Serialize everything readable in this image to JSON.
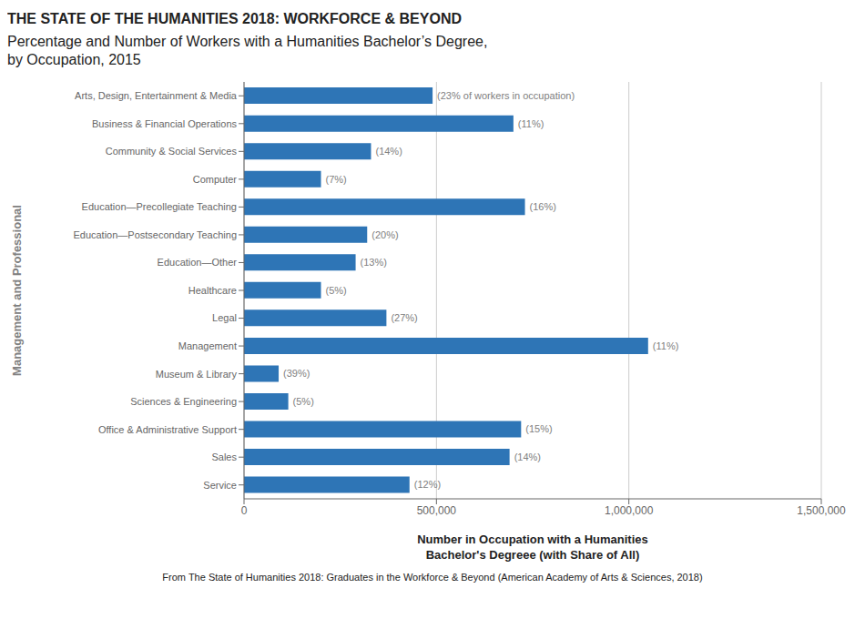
{
  "chart_data": {
    "type": "bar",
    "orientation": "horizontal",
    "title": "Percentage and Number of Workers with a Humanities Bachelor’s Degree,\nby Occupation, 2015",
    "annotations": [
      "THE STATE OF THE HUMANITIES 2018: WORKFORCE & BEYOND",
      "From The State of Humanities 2018: Graduates in the Workforce & Beyond (American Academy of Arts & Sciences, 2018)"
    ],
    "categories": [
      "Arts, Design, Entertainment & Media",
      "Business & Financial Operations",
      "Community & Social Services",
      "Computer",
      "Education—Precollegiate Teaching",
      "Education—Postsecondary Teaching",
      "Education—Other",
      "Healthcare",
      "Legal",
      "Management",
      "Museum & Library",
      "Sciences & Engineering",
      "Office & Administrative Support",
      "Sales",
      "Service"
    ],
    "values": [
      490000,
      700000,
      330000,
      200000,
      730000,
      320000,
      290000,
      200000,
      370000,
      1050000,
      90000,
      115000,
      720000,
      690000,
      430000
    ],
    "bar_labels": [
      "(23% of workers in occupation)",
      "(11%)",
      "(14%)",
      "(7%)",
      "(16%)",
      "(20%)",
      "(13%)",
      "(5%)",
      "(27%)",
      "(11%)",
      "(39%)",
      "(5%)",
      "(15%)",
      "(14%)",
      "(12%)"
    ],
    "color": "#2E75B6",
    "ylabel": "Management and Professional",
    "xlabel": "Number in Occupation with a Humanities\nBachelor's Degreee (with Share of All)",
    "xlim": [
      0,
      1500000
    ],
    "xticks": [
      0,
      {
        "value": 500000,
        "label": "500,000"
      },
      {
        "value": 1000000,
        "label": "1,000,000"
      },
      {
        "value": 1500000,
        "label": "1,500,000"
      }
    ],
    "grid": true
  }
}
